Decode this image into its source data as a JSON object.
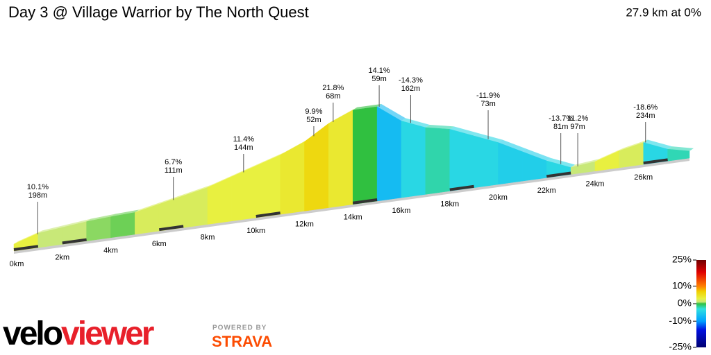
{
  "chart_data": {
    "type": "profile",
    "title": "Day 3 @ Village Warrior by The North Quest",
    "subtitle": "27.9 km at 0%",
    "xlim": [
      0,
      27.9
    ],
    "bins": [
      0,
      1,
      2,
      3,
      4,
      5,
      6,
      7,
      8,
      9,
      10,
      11,
      12,
      13,
      14,
      15,
      16,
      17,
      18,
      19,
      20,
      21,
      22,
      23,
      24,
      25,
      26,
      27,
      27.9
    ],
    "grades": [
      3,
      1,
      1,
      0.6,
      0.4,
      2,
      2,
      2,
      3,
      3,
      3,
      4,
      6,
      4,
      0,
      -7,
      -4,
      -2,
      -4,
      -4,
      -5,
      -5,
      -4,
      1,
      3,
      2,
      -4,
      -2.2
    ],
    "xticks": [
      {
        "value": 0,
        "label": "0km"
      },
      {
        "value": 2,
        "label": "2km"
      },
      {
        "value": 4,
        "label": "4km"
      },
      {
        "value": 6,
        "label": "6km"
      },
      {
        "value": 8,
        "label": "8km"
      },
      {
        "value": 10,
        "label": "10km"
      },
      {
        "value": 12,
        "label": "12km"
      },
      {
        "value": 14,
        "label": "14km"
      },
      {
        "value": 16,
        "label": "16km"
      },
      {
        "value": 18,
        "label": "18km"
      },
      {
        "value": 20,
        "label": "20km"
      },
      {
        "value": 22,
        "label": "22km"
      },
      {
        "value": 24,
        "label": "24km"
      },
      {
        "value": 26,
        "label": "26km"
      }
    ],
    "annotations": [
      {
        "x": 0.9,
        "grade": {
          "value": 10.1,
          "label": "10.1%"
        },
        "length": {
          "value": 198,
          "label": "198m"
        }
      },
      {
        "x": 6.5,
        "grade": {
          "value": 6.7,
          "label": "6.7%"
        },
        "length": {
          "value": 111,
          "label": "111m"
        }
      },
      {
        "x": 9.4,
        "grade": {
          "value": 11.4,
          "label": "11.4%"
        },
        "length": {
          "value": 144,
          "label": "144m"
        }
      },
      {
        "x": 12.3,
        "grade": {
          "value": 9.9,
          "label": "9.9%"
        },
        "length": {
          "value": 52,
          "label": "52m"
        }
      },
      {
        "x": 13.1,
        "grade": {
          "value": 21.8,
          "label": "21.8%"
        },
        "length": {
          "value": 68,
          "label": "68m"
        }
      },
      {
        "x": 15.0,
        "grade": {
          "value": 14.1,
          "label": "14.1%"
        },
        "length": {
          "value": 59,
          "label": "59m"
        }
      },
      {
        "x": 16.3,
        "grade": {
          "value": -14.3,
          "label": "-14.3%"
        },
        "length": {
          "value": 162,
          "label": "162m"
        }
      },
      {
        "x": 19.5,
        "grade": {
          "value": -11.9,
          "label": "-11.9%"
        },
        "length": {
          "value": 73,
          "label": "73m"
        }
      },
      {
        "x": 22.5,
        "grade": {
          "value": -13.7,
          "label": "-13.7%"
        },
        "length": {
          "value": 81,
          "label": "81m"
        }
      },
      {
        "x": 23.2,
        "grade": {
          "value": 11.2,
          "label": "11.2%"
        },
        "length": {
          "value": 97,
          "label": "97m"
        }
      },
      {
        "x": 26.0,
        "grade": {
          "value": -18.6,
          "label": "-18.6%"
        },
        "length": {
          "value": 234,
          "label": "234m"
        }
      }
    ],
    "colorbar": {
      "lim": [
        -25,
        25
      ],
      "ticks": [
        {
          "value": 25,
          "label": "25%"
        },
        {
          "value": 10,
          "label": "10%"
        },
        {
          "value": 0,
          "label": "0%"
        },
        {
          "value": -10,
          "label": "-10%"
        },
        {
          "value": -25,
          "label": "-25%"
        }
      ],
      "stops": [
        [
          -25,
          "#000070"
        ],
        [
          -15,
          "#0010e0"
        ],
        [
          -10,
          "#00a0ff"
        ],
        [
          -3,
          "#30e0e0"
        ],
        [
          0,
          "#30c040"
        ],
        [
          1,
          "#c8e878"
        ],
        [
          3,
          "#e8f040"
        ],
        [
          7,
          "#f0d000"
        ],
        [
          10,
          "#ff8000"
        ],
        [
          18,
          "#e00000"
        ],
        [
          25,
          "#700000"
        ]
      ]
    }
  },
  "branding": {
    "velo": "velo",
    "viewer": "viewer",
    "powered": "POWERED BY",
    "strava": "STRAVA"
  }
}
